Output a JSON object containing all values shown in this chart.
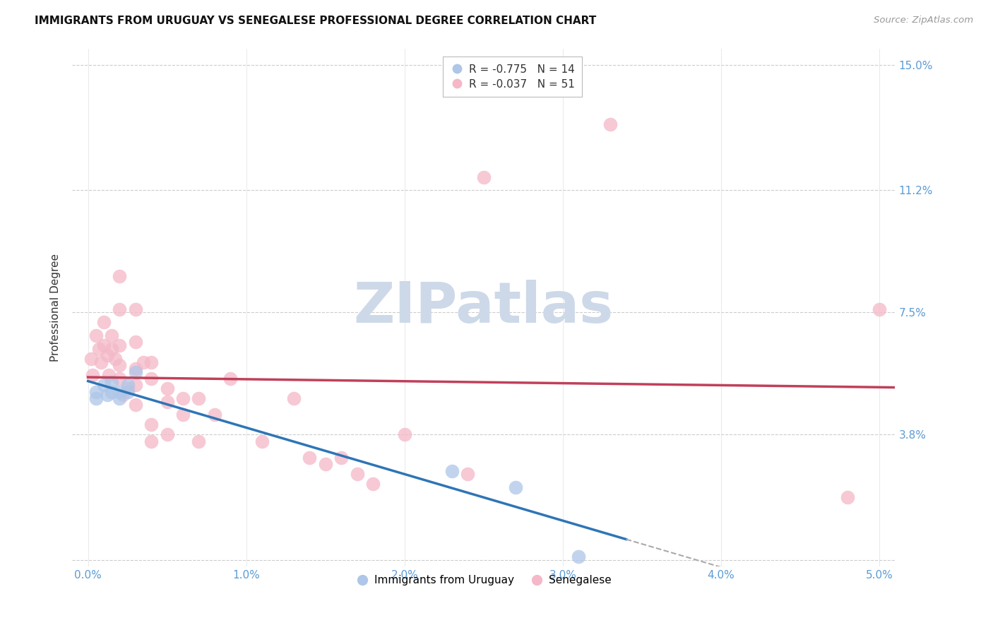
{
  "title": "IMMIGRANTS FROM URUGUAY VS SENEGALESE PROFESSIONAL DEGREE CORRELATION CHART",
  "source": "Source: ZipAtlas.com",
  "ylabel": "Professional Degree",
  "x_ticks": [
    0.0,
    0.01,
    0.02,
    0.03,
    0.04,
    0.05
  ],
  "x_tick_labels": [
    "0.0%",
    "1.0%",
    "2.0%",
    "3.0%",
    "4.0%",
    "5.0%"
  ],
  "y_ticks": [
    0.0,
    0.038,
    0.075,
    0.112,
    0.15
  ],
  "y_tick_labels": [
    "",
    "3.8%",
    "7.5%",
    "11.2%",
    "15.0%"
  ],
  "xlim": [
    -0.001,
    0.051
  ],
  "ylim": [
    -0.002,
    0.155
  ],
  "legend_labels": [
    "Immigrants from Uruguay",
    "Senegalese"
  ],
  "legend_r_uruguay": "R = -0.775",
  "legend_n_uruguay": "N = 14",
  "legend_r_senegal": "R = -0.037",
  "legend_n_senegal": "N = 51",
  "color_uruguay": "#aec6e8",
  "color_senegal": "#f4b8c8",
  "color_trend_uruguay": "#2e75b6",
  "color_trend_senegal": "#c0405a",
  "color_watermark": "#cdd9e8",
  "watermark_text": "ZIPatlas",
  "uruguay_x": [
    0.0005,
    0.0005,
    0.001,
    0.0012,
    0.0015,
    0.0015,
    0.002,
    0.002,
    0.0025,
    0.0025,
    0.003,
    0.023,
    0.027,
    0.031
  ],
  "uruguay_y": [
    0.051,
    0.049,
    0.053,
    0.05,
    0.054,
    0.051,
    0.051,
    0.049,
    0.053,
    0.051,
    0.057,
    0.027,
    0.022,
    0.001
  ],
  "senegal_x": [
    0.0002,
    0.0003,
    0.0005,
    0.0007,
    0.0008,
    0.001,
    0.001,
    0.0012,
    0.0013,
    0.0015,
    0.0015,
    0.0017,
    0.002,
    0.002,
    0.002,
    0.002,
    0.002,
    0.0022,
    0.0025,
    0.003,
    0.003,
    0.003,
    0.003,
    0.003,
    0.0035,
    0.004,
    0.004,
    0.004,
    0.004,
    0.005,
    0.005,
    0.005,
    0.006,
    0.006,
    0.007,
    0.007,
    0.008,
    0.009,
    0.011,
    0.013,
    0.014,
    0.015,
    0.016,
    0.017,
    0.018,
    0.02,
    0.024,
    0.025,
    0.033,
    0.048,
    0.05
  ],
  "senegal_y": [
    0.061,
    0.056,
    0.068,
    0.064,
    0.06,
    0.072,
    0.065,
    0.062,
    0.056,
    0.068,
    0.064,
    0.061,
    0.086,
    0.076,
    0.065,
    0.059,
    0.055,
    0.05,
    0.052,
    0.076,
    0.066,
    0.058,
    0.053,
    0.047,
    0.06,
    0.06,
    0.055,
    0.041,
    0.036,
    0.052,
    0.048,
    0.038,
    0.049,
    0.044,
    0.049,
    0.036,
    0.044,
    0.055,
    0.036,
    0.049,
    0.031,
    0.029,
    0.031,
    0.026,
    0.023,
    0.038,
    0.026,
    0.116,
    0.132,
    0.019,
    0.076
  ],
  "trend_uruguay_x0": 0.0,
  "trend_uruguay_x1": 0.034,
  "trend_uruguay_x_ext1": 0.034,
  "trend_uruguay_x_ext2": 0.051,
  "trend_senegal_x0": 0.0,
  "trend_senegal_x1": 0.051
}
